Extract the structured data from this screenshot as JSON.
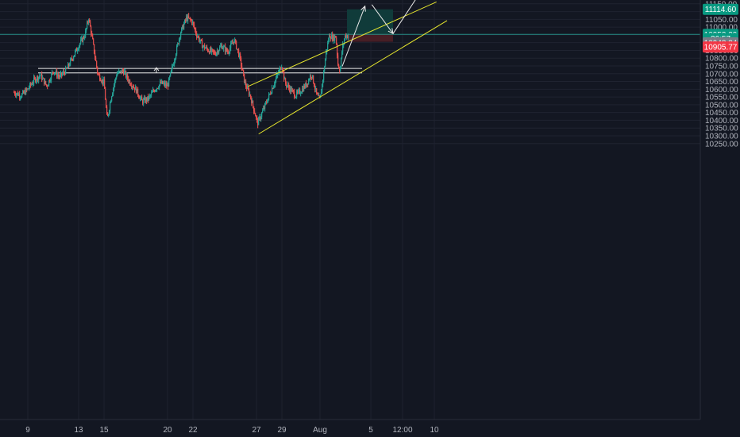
{
  "chart_data": {
    "type": "candlestick",
    "title": "",
    "xlabel": "",
    "ylabel": "",
    "ylim": [
      10230,
      11160
    ],
    "y_ticks": [
      10250,
      10300,
      10350,
      10400,
      10450,
      10500,
      10550,
      10600,
      10650,
      10700,
      10750,
      10800,
      10850,
      10900,
      10950,
      11000,
      11050,
      11100,
      11150
    ],
    "x_ticks": [
      {
        "label": "9",
        "hour": 0
      },
      {
        "label": "13",
        "hour": 96
      },
      {
        "label": "15",
        "hour": 144
      },
      {
        "label": "20",
        "hour": 264
      },
      {
        "label": "22",
        "hour": 312
      },
      {
        "label": "27",
        "hour": 432
      },
      {
        "label": "29",
        "hour": 480
      },
      {
        "label": "Aug",
        "hour": 552
      },
      {
        "label": "5",
        "hour": 648
      },
      {
        "label": "12:00",
        "hour": 708
      },
      {
        "label": "10",
        "hour": 768
      }
    ],
    "x_range_hours": [
      -26,
      786
    ],
    "grid": true,
    "price_path": [
      [
        -26,
        10580
      ],
      [
        -12,
        10560
      ],
      [
        0,
        10600
      ],
      [
        12,
        10660
      ],
      [
        24,
        10690
      ],
      [
        36,
        10620
      ],
      [
        48,
        10720
      ],
      [
        60,
        10680
      ],
      [
        72,
        10720
      ],
      [
        84,
        10800
      ],
      [
        96,
        10880
      ],
      [
        108,
        10950
      ],
      [
        115,
        11060
      ],
      [
        122,
        10920
      ],
      [
        132,
        10700
      ],
      [
        144,
        10640
      ],
      [
        150,
        10400
      ],
      [
        158,
        10560
      ],
      [
        168,
        10700
      ],
      [
        180,
        10720
      ],
      [
        192,
        10650
      ],
      [
        204,
        10600
      ],
      [
        216,
        10520
      ],
      [
        228,
        10540
      ],
      [
        240,
        10600
      ],
      [
        252,
        10640
      ],
      [
        264,
        10620
      ],
      [
        276,
        10780
      ],
      [
        288,
        10960
      ],
      [
        300,
        11060
      ],
      [
        310,
        11040
      ],
      [
        318,
        10960
      ],
      [
        330,
        10880
      ],
      [
        342,
        10850
      ],
      [
        354,
        10830
      ],
      [
        366,
        10880
      ],
      [
        378,
        10840
      ],
      [
        390,
        10920
      ],
      [
        400,
        10810
      ],
      [
        410,
        10640
      ],
      [
        420,
        10560
      ],
      [
        428,
        10460
      ],
      [
        434,
        10380
      ],
      [
        444,
        10460
      ],
      [
        456,
        10560
      ],
      [
        468,
        10660
      ],
      [
        480,
        10760
      ],
      [
        486,
        10640
      ],
      [
        496,
        10600
      ],
      [
        506,
        10560
      ],
      [
        516,
        10590
      ],
      [
        526,
        10630
      ],
      [
        536,
        10700
      ],
      [
        546,
        10560
      ],
      [
        552,
        10530
      ],
      [
        558,
        10680
      ],
      [
        564,
        10850
      ],
      [
        570,
        10950
      ],
      [
        576,
        10930
      ],
      [
        582,
        10940
      ],
      [
        586,
        10760
      ],
      [
        590,
        10720
      ],
      [
        594,
        10860
      ],
      [
        600,
        10950
      ],
      [
        606,
        10940
      ]
    ],
    "horizontal_lines": [
      10734,
      10705
    ],
    "last_price_line": 10953.29,
    "channel": {
      "lower": [
        [
          436,
          10312
        ],
        [
          792,
          11042
        ]
      ],
      "upper": [
        [
          416,
          10618
        ],
        [
          772,
          11162
        ]
      ]
    },
    "projection_arrows": [
      [
        [
          594,
          10748
        ],
        [
          637,
          11135
        ]
      ],
      [
        [
          650,
          11145
        ],
        [
          690,
          10958
        ]
      ],
      [
        [
          690,
          10958
        ],
        [
          735,
          11190
        ]
      ]
    ],
    "long_position": {
      "x_start_hour": 603,
      "x_end_hour": 690,
      "target": 11114.6,
      "entry": 10955.0,
      "stop": 10905.77
    },
    "price_tags": [
      {
        "label": "11114.60",
        "value": 11114.6,
        "color": "#089981"
      },
      {
        "label": "10953.29",
        "value": 10953.29,
        "color": "#089981"
      },
      {
        "label": "36:57",
        "value": 10926.0,
        "color": "#089981"
      },
      {
        "label": "10948.34",
        "value": 10899.0,
        "color": "#787b86"
      },
      {
        "label": "10905.77",
        "value": 10872.0,
        "color": "#f23645"
      }
    ],
    "colors": {
      "background": "#131722",
      "grid": "#1f2330",
      "up": "#26a69a",
      "down": "#ef5350",
      "channel": "#e6e62e",
      "level": "#e8e8e8",
      "arrow": "#e8e8e8",
      "target_zone": "#103d3c",
      "stop_zone": "#4a1f26",
      "axis_text": "#b2b5be"
    }
  }
}
